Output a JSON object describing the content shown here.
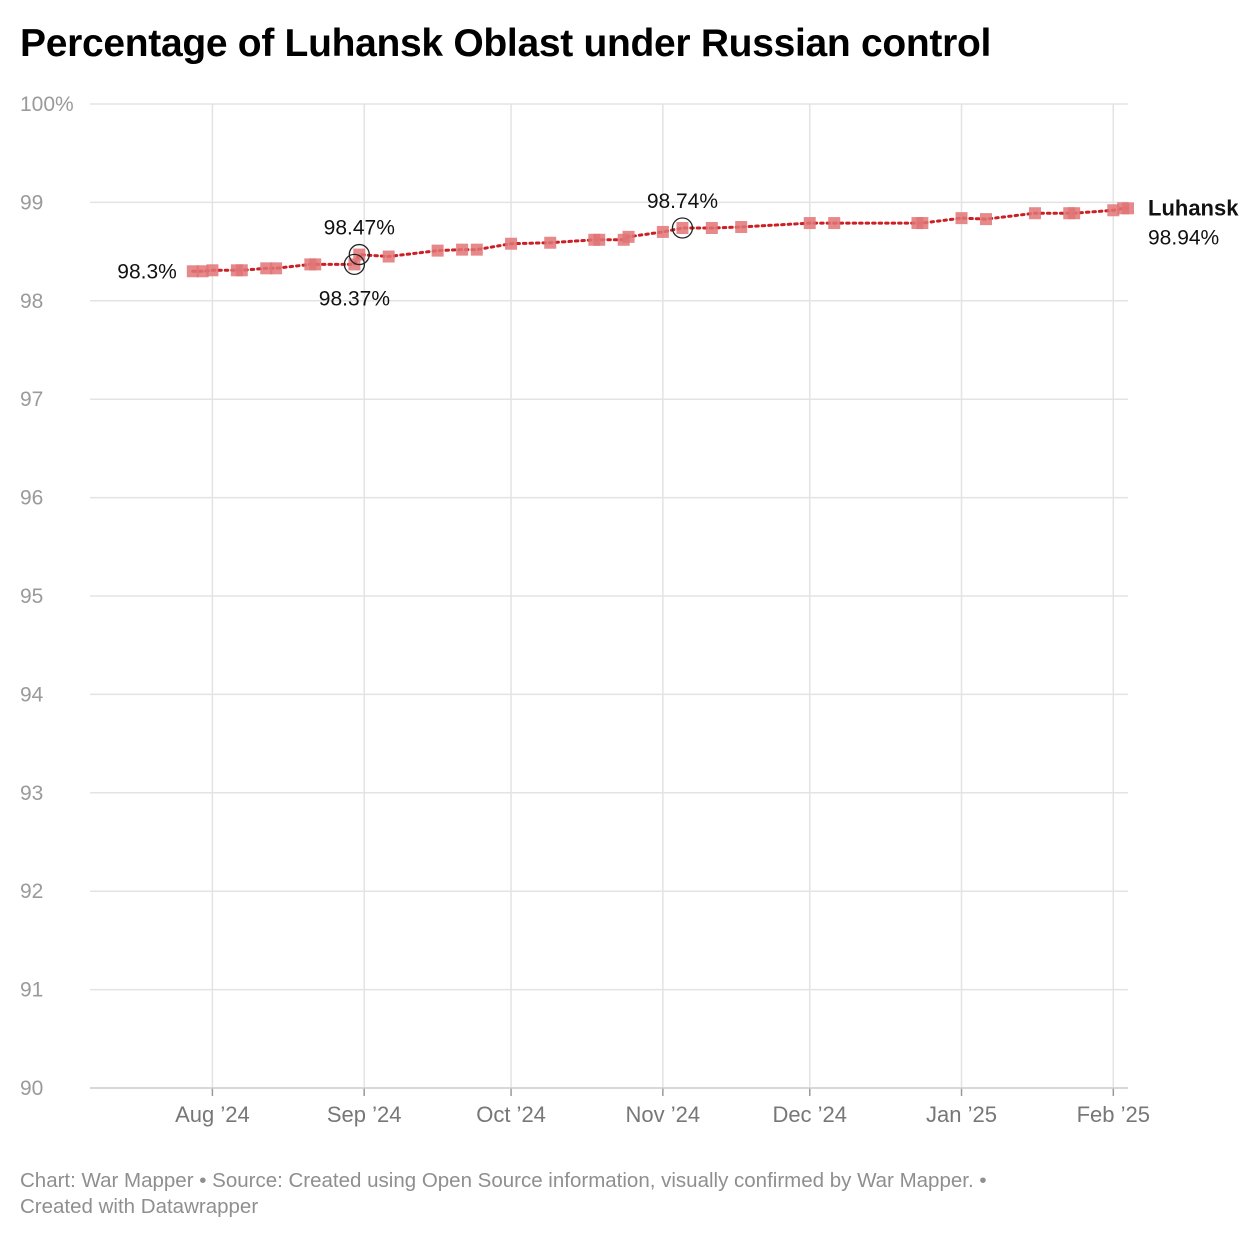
{
  "title": "Percentage of Luhansk Oblast under Russian control",
  "footer": {
    "chart_by": "Chart: War Mapper",
    "sep1": "•",
    "source": "Source: Created using Open Source information, visually confirmed by War Mapper.",
    "sep2": "•",
    "created_with": "Created with Datawrapper"
  },
  "colors": {
    "line": "#cc1f23",
    "marker": "#e07476",
    "grid": "#e3e3e3"
  },
  "chart_data": {
    "type": "line",
    "title": "Percentage of Luhansk Oblast under Russian control",
    "xlabel": "",
    "ylabel": "",
    "ylim": [
      90,
      100
    ],
    "xlim": [
      "2024-07-07",
      "2025-02-04"
    ],
    "grid": true,
    "legend": "none",
    "y_ticks": [
      {
        "value": 100,
        "label": "100%"
      },
      {
        "value": 99,
        "label": "99"
      },
      {
        "value": 98,
        "label": "98"
      },
      {
        "value": 97,
        "label": "97"
      },
      {
        "value": 96,
        "label": "96"
      },
      {
        "value": 95,
        "label": "95"
      },
      {
        "value": 94,
        "label": "94"
      },
      {
        "value": 93,
        "label": "93"
      },
      {
        "value": 92,
        "label": "92"
      },
      {
        "value": 91,
        "label": "91"
      },
      {
        "value": 90,
        "label": "90"
      }
    ],
    "x_ticks": [
      {
        "date": "2024-08-01",
        "label": "Aug ’24"
      },
      {
        "date": "2024-09-01",
        "label": "Sep ’24"
      },
      {
        "date": "2024-10-01",
        "label": "Oct ’24"
      },
      {
        "date": "2024-11-01",
        "label": "Nov ’24"
      },
      {
        "date": "2024-12-01",
        "label": "Dec ’24"
      },
      {
        "date": "2025-01-01",
        "label": "Jan ’25"
      },
      {
        "date": "2025-02-01",
        "label": "Feb ’25"
      }
    ],
    "series": [
      {
        "name": "Luhansk",
        "end_label": "98.94%",
        "points": [
          {
            "date": "2024-07-28",
            "value": 98.3
          },
          {
            "date": "2024-07-30",
            "value": 98.3
          },
          {
            "date": "2024-08-01",
            "value": 98.31
          },
          {
            "date": "2024-08-06",
            "value": 98.31
          },
          {
            "date": "2024-08-07",
            "value": 98.31
          },
          {
            "date": "2024-08-12",
            "value": 98.33
          },
          {
            "date": "2024-08-14",
            "value": 98.33
          },
          {
            "date": "2024-08-21",
            "value": 98.37
          },
          {
            "date": "2024-08-22",
            "value": 98.37
          },
          {
            "date": "2024-08-30",
            "value": 98.37
          },
          {
            "date": "2024-08-31",
            "value": 98.47
          },
          {
            "date": "2024-09-06",
            "value": 98.45
          },
          {
            "date": "2024-09-16",
            "value": 98.51
          },
          {
            "date": "2024-09-21",
            "value": 98.52
          },
          {
            "date": "2024-09-24",
            "value": 98.52
          },
          {
            "date": "2024-10-01",
            "value": 98.58
          },
          {
            "date": "2024-10-09",
            "value": 98.59
          },
          {
            "date": "2024-10-18",
            "value": 98.62
          },
          {
            "date": "2024-10-19",
            "value": 98.62
          },
          {
            "date": "2024-10-24",
            "value": 98.62
          },
          {
            "date": "2024-10-25",
            "value": 98.65
          },
          {
            "date": "2024-11-01",
            "value": 98.7
          },
          {
            "date": "2024-11-05",
            "value": 98.74
          },
          {
            "date": "2024-11-11",
            "value": 98.74
          },
          {
            "date": "2024-11-17",
            "value": 98.75
          },
          {
            "date": "2024-12-01",
            "value": 98.79
          },
          {
            "date": "2024-12-06",
            "value": 98.79
          },
          {
            "date": "2024-12-23",
            "value": 98.79
          },
          {
            "date": "2024-12-24",
            "value": 98.79
          },
          {
            "date": "2025-01-01",
            "value": 98.84
          },
          {
            "date": "2025-01-06",
            "value": 98.83
          },
          {
            "date": "2025-01-16",
            "value": 98.89
          },
          {
            "date": "2025-01-23",
            "value": 98.89
          },
          {
            "date": "2025-01-24",
            "value": 98.89
          },
          {
            "date": "2025-02-01",
            "value": 98.92
          },
          {
            "date": "2025-02-03",
            "value": 98.94
          },
          {
            "date": "2025-02-04",
            "value": 98.94
          }
        ]
      }
    ],
    "annotations": [
      {
        "date": "2024-07-28",
        "value": 98.3,
        "text": "98.3%",
        "position": "left",
        "circle": false
      },
      {
        "date": "2024-08-31",
        "value": 98.47,
        "text": "98.47%",
        "position": "above",
        "circle": true
      },
      {
        "date": "2024-08-30",
        "value": 98.37,
        "text": "98.37%",
        "position": "below",
        "circle": true
      },
      {
        "date": "2024-11-05",
        "value": 98.74,
        "text": "98.74%",
        "position": "above",
        "circle": true
      }
    ]
  }
}
